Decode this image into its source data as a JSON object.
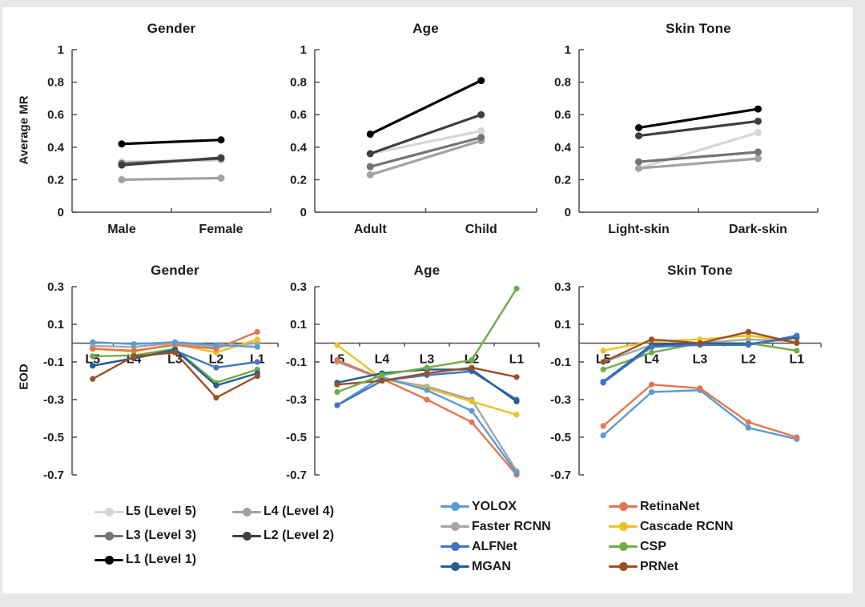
{
  "colors": {
    "l1": "#000000",
    "l2": "#3f3f3f",
    "l3": "#747474",
    "l4": "#a3a3a3",
    "l5": "#d6d6d6",
    "yolox": "#5b9bd5",
    "retinanet": "#e2764e",
    "faster_rcnn": "#a5a5a5",
    "cascade_rcnn": "#eec121",
    "alfnet": "#4472c4",
    "csp": "#70ad47",
    "mgan": "#255e91",
    "prnet": "#9a5026"
  },
  "chart_data": [
    {
      "type": "line",
      "title": "Gender",
      "ylabel": "Average MR",
      "xlabel": "",
      "categories": [
        "Male",
        "Female"
      ],
      "yticks": [
        1,
        0.8,
        0.6,
        0.4,
        0.2,
        0
      ],
      "ytick_labels": [
        "1",
        "0.8",
        "0.6",
        "0.4",
        "0.2",
        "0"
      ],
      "ylim": [
        0,
        1
      ],
      "zero_line": false,
      "legend_position": "bottom",
      "grid": false,
      "series": [
        {
          "name": "L5 (Level 5)",
          "color": "l5",
          "values": [
            0.31,
            0.32
          ]
        },
        {
          "name": "L4 (Level 4)",
          "color": "l4",
          "values": [
            0.2,
            0.21
          ]
        },
        {
          "name": "L3 (Level 3)",
          "color": "l3",
          "values": [
            0.3,
            0.33
          ]
        },
        {
          "name": "L2 (Level 2)",
          "color": "l2",
          "values": [
            0.29,
            0.335
          ]
        },
        {
          "name": "L1 (Level 1)",
          "color": "l1",
          "values": [
            0.42,
            0.445
          ]
        }
      ]
    },
    {
      "type": "line",
      "title": "Age",
      "ylabel": "",
      "xlabel": "",
      "categories": [
        "Adult",
        "Child"
      ],
      "yticks": [
        1,
        0.8,
        0.6,
        0.4,
        0.2,
        0
      ],
      "ytick_labels": [
        "1",
        "0.8",
        "0.6",
        "0.4",
        "0.2",
        "0"
      ],
      "ylim": [
        0,
        1
      ],
      "zero_line": false,
      "grid": false,
      "series": [
        {
          "name": "L5 (Level 5)",
          "color": "l5",
          "values": [
            0.36,
            0.5
          ]
        },
        {
          "name": "L4 (Level 4)",
          "color": "l4",
          "values": [
            0.23,
            0.44
          ]
        },
        {
          "name": "L3 (Level 3)",
          "color": "l3",
          "values": [
            0.28,
            0.46
          ]
        },
        {
          "name": "L2 (Level 2)",
          "color": "l2",
          "values": [
            0.36,
            0.6
          ]
        },
        {
          "name": "L1 (Level 1)",
          "color": "l1",
          "values": [
            0.48,
            0.81
          ]
        }
      ]
    },
    {
      "type": "line",
      "title": "Skin Tone",
      "ylabel": "",
      "xlabel": "",
      "categories": [
        "Light-skin",
        "Dark-skin"
      ],
      "yticks": [
        1,
        0.8,
        0.6,
        0.4,
        0.2,
        0
      ],
      "ytick_labels": [
        "1",
        "0.8",
        "0.6",
        "0.4",
        "0.2",
        "0"
      ],
      "ylim": [
        0,
        1
      ],
      "zero_line": false,
      "grid": false,
      "series": [
        {
          "name": "L5 (Level 5)",
          "color": "l5",
          "values": [
            0.27,
            0.49
          ]
        },
        {
          "name": "L4 (Level 4)",
          "color": "l4",
          "values": [
            0.27,
            0.33
          ]
        },
        {
          "name": "L3 (Level 3)",
          "color": "l3",
          "values": [
            0.31,
            0.37
          ]
        },
        {
          "name": "L2 (Level 2)",
          "color": "l2",
          "values": [
            0.47,
            0.56
          ]
        },
        {
          "name": "L1 (Level 1)",
          "color": "l1",
          "values": [
            0.52,
            0.635
          ]
        }
      ]
    },
    {
      "type": "line",
      "title": "Gender",
      "ylabel": "EOD",
      "xlabel": "",
      "categories": [
        "L5",
        "L4",
        "L3",
        "L2",
        "L1"
      ],
      "yticks": [
        0.3,
        0.1,
        -0.1,
        -0.3,
        -0.5,
        -0.7
      ],
      "ytick_labels": [
        "0.3",
        "0.1",
        "-0.1",
        "-0.3",
        "-0.5",
        "-0.7"
      ],
      "ylim": [
        -0.7,
        0.3
      ],
      "zero_line": true,
      "grid": false,
      "series": [
        {
          "name": "Faster RCNN",
          "color": "faster_rcnn",
          "values": [
            -0.015,
            -0.02,
            0.0,
            -0.02,
            0.0
          ]
        },
        {
          "name": "Cascade RCNN",
          "color": "cascade_rcnn",
          "values": [
            -0.03,
            -0.045,
            -0.005,
            -0.05,
            0.02
          ]
        },
        {
          "name": "RetinaNet",
          "color": "retinanet",
          "values": [
            -0.03,
            -0.04,
            -0.01,
            -0.03,
            0.06
          ]
        },
        {
          "name": "CSP",
          "color": "csp",
          "values": [
            -0.07,
            -0.065,
            -0.03,
            -0.21,
            -0.14
          ]
        },
        {
          "name": "ALFNet",
          "color": "alfnet",
          "values": [
            -0.12,
            -0.08,
            -0.04,
            -0.13,
            -0.1
          ]
        },
        {
          "name": "MGAN",
          "color": "mgan",
          "values": [
            -0.12,
            -0.08,
            -0.035,
            -0.225,
            -0.16
          ]
        },
        {
          "name": "PRNet",
          "color": "prnet",
          "values": [
            -0.19,
            -0.07,
            -0.05,
            -0.29,
            -0.175
          ]
        },
        {
          "name": "YOLOX",
          "color": "yolox",
          "values": [
            0.005,
            -0.005,
            0.005,
            -0.01,
            -0.02
          ]
        }
      ]
    },
    {
      "type": "line",
      "title": "Age",
      "ylabel": "",
      "xlabel": "",
      "categories": [
        "L5",
        "L4",
        "L3",
        "L2",
        "L1"
      ],
      "yticks": [
        0.3,
        0.1,
        -0.1,
        -0.3,
        -0.5,
        -0.7
      ],
      "ytick_labels": [
        "0.3",
        "0.1",
        "-0.1",
        "-0.3",
        "-0.5",
        "-0.7"
      ],
      "ylim": [
        -0.7,
        0.3
      ],
      "zero_line": true,
      "grid": false,
      "series": [
        {
          "name": "Faster RCNN",
          "color": "faster_rcnn",
          "values": [
            -0.1,
            -0.19,
            -0.23,
            -0.3,
            -0.68
          ]
        },
        {
          "name": "Cascade RCNN",
          "color": "cascade_rcnn",
          "values": [
            -0.01,
            -0.19,
            -0.24,
            -0.31,
            -0.38
          ]
        },
        {
          "name": "RetinaNet",
          "color": "retinanet",
          "values": [
            -0.09,
            -0.19,
            -0.3,
            -0.42,
            -0.7
          ]
        },
        {
          "name": "YOLOX",
          "color": "yolox",
          "values": [
            -0.33,
            -0.18,
            -0.25,
            -0.36,
            -0.69
          ]
        },
        {
          "name": "ALFNet",
          "color": "alfnet",
          "values": [
            -0.33,
            -0.2,
            -0.17,
            -0.15,
            -0.3
          ]
        },
        {
          "name": "MGAN",
          "color": "mgan",
          "values": [
            -0.21,
            -0.16,
            -0.14,
            -0.14,
            -0.31
          ]
        },
        {
          "name": "PRNet",
          "color": "prnet",
          "values": [
            -0.22,
            -0.2,
            -0.16,
            -0.13,
            -0.18
          ]
        },
        {
          "name": "CSP",
          "color": "csp",
          "values": [
            -0.26,
            -0.17,
            -0.13,
            -0.09,
            0.29
          ]
        }
      ]
    },
    {
      "type": "line",
      "title": "Skin Tone",
      "ylabel": "",
      "xlabel": "",
      "categories": [
        "L5",
        "L4",
        "L3",
        "L2",
        "L1"
      ],
      "yticks": [
        0.3,
        0.1,
        -0.1,
        -0.3,
        -0.5,
        -0.7
      ],
      "ytick_labels": [
        "0.3",
        "0.1",
        "-0.1",
        "-0.3",
        "-0.5",
        "-0.7"
      ],
      "ylim": [
        -0.7,
        0.3
      ],
      "zero_line": true,
      "grid": false,
      "series": [
        {
          "name": "Faster RCNN",
          "color": "faster_rcnn",
          "values": [
            -0.1,
            -0.01,
            0.0,
            0.02,
            0.01
          ]
        },
        {
          "name": "Cascade RCNN",
          "color": "cascade_rcnn",
          "values": [
            -0.04,
            0.01,
            0.02,
            0.04,
            0.01
          ]
        },
        {
          "name": "CSP",
          "color": "csp",
          "values": [
            -0.14,
            -0.05,
            0.0,
            0.0,
            -0.04
          ]
        },
        {
          "name": "MGAN",
          "color": "mgan",
          "values": [
            -0.205,
            -0.01,
            0.0,
            -0.005,
            0.03
          ]
        },
        {
          "name": "ALFNet",
          "color": "alfnet",
          "values": [
            -0.21,
            -0.02,
            -0.01,
            -0.01,
            0.04
          ]
        },
        {
          "name": "PRNet",
          "color": "prnet",
          "values": [
            -0.1,
            0.02,
            0.0,
            0.06,
            0.0
          ]
        },
        {
          "name": "YOLOX",
          "color": "yolox",
          "values": [
            -0.49,
            -0.26,
            -0.25,
            -0.45,
            -0.51
          ]
        },
        {
          "name": "RetinaNet",
          "color": "retinanet",
          "values": [
            -0.44,
            -0.22,
            -0.24,
            -0.42,
            -0.5
          ]
        }
      ]
    }
  ],
  "legends": {
    "levels": [
      {
        "label": "L5 (Level 5)",
        "color": "l5"
      },
      {
        "label": "L4 (Level 4)",
        "color": "l4"
      },
      {
        "label": "L3 (Level 3)",
        "color": "l3"
      },
      {
        "label": "L2 (Level 2)",
        "color": "l2"
      },
      {
        "label": "L1 (Level 1)",
        "color": "l1"
      }
    ],
    "models": [
      {
        "label": "YOLOX",
        "color": "yolox"
      },
      {
        "label": "RetinaNet",
        "color": "retinanet"
      },
      {
        "label": "Faster RCNN",
        "color": "faster_rcnn"
      },
      {
        "label": "Cascade RCNN",
        "color": "cascade_rcnn"
      },
      {
        "label": "ALFNet",
        "color": "alfnet"
      },
      {
        "label": "CSP",
        "color": "csp"
      },
      {
        "label": "MGAN",
        "color": "mgan"
      },
      {
        "label": "PRNet",
        "color": "prnet"
      }
    ]
  }
}
